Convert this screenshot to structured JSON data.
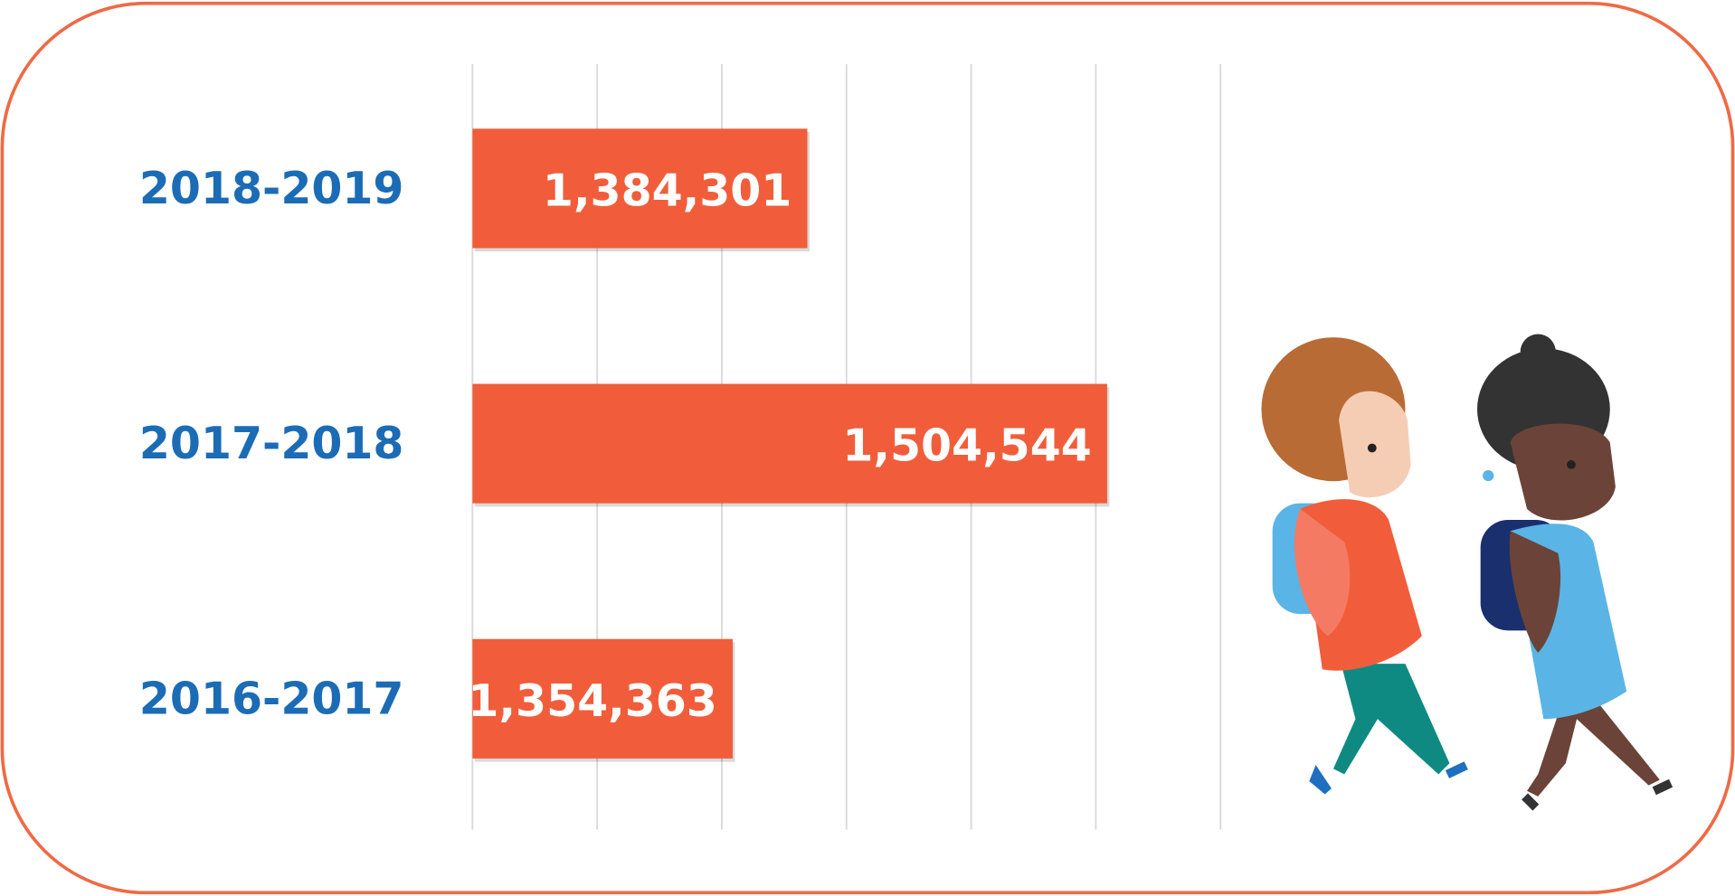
{
  "chart_data": {
    "type": "bar",
    "orientation": "horizontal",
    "categories": [
      "2018-2019",
      "2017-2018",
      "2016-2017"
    ],
    "values": [
      1384301,
      1504544,
      1354363
    ],
    "value_labels": [
      "1,384,301",
      "1,504,544",
      "1,354,363"
    ],
    "color": "#f15d3a",
    "xlim": [
      1250000,
      1550000
    ],
    "xticks": [
      1250000,
      1300000,
      1350000,
      1400000,
      1450000,
      1500000,
      1550000
    ],
    "grid": true
  }
}
